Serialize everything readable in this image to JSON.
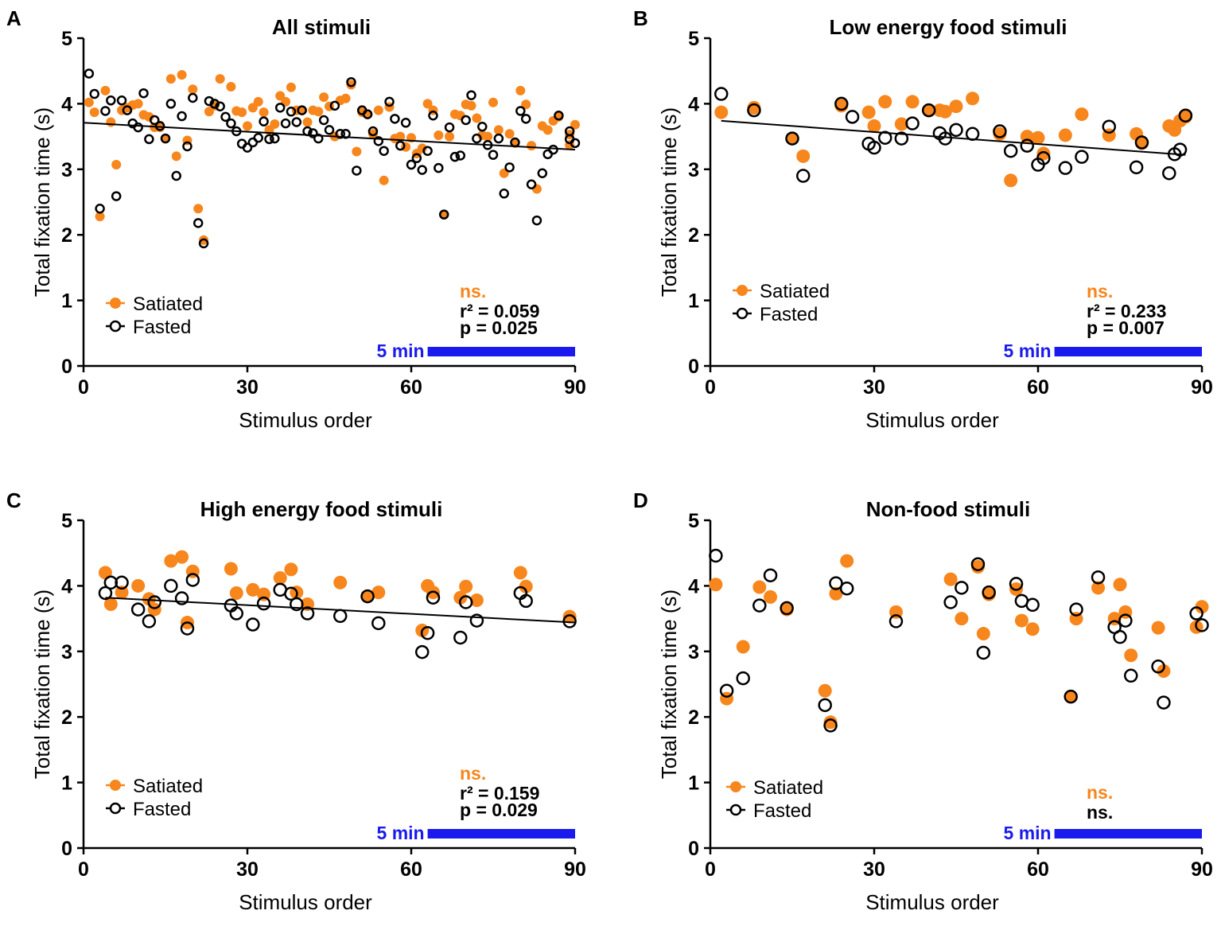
{
  "colors": {
    "satiated": "#f7861c",
    "fasted": "#000000",
    "bar": "#1a1aee",
    "ns": "#f7861c"
  },
  "chart_data": [
    {
      "id": "A",
      "type": "scatter",
      "letter": "A",
      "title": "All stimuli",
      "xlabel": "Stimulus order",
      "ylabel": "Total fixation time (s)",
      "xlim": [
        0,
        90
      ],
      "ylim": [
        0,
        5
      ],
      "xticks": [
        "0",
        "30",
        "60",
        "90"
      ],
      "yticks": [
        "0",
        "1",
        "2",
        "3",
        "4",
        "5"
      ],
      "legend": [
        "Satiated",
        "Fasted"
      ],
      "legend_position": "bottom-left",
      "points_from": [
        "B",
        "C",
        "D"
      ],
      "regression": {
        "x": [
          0,
          90
        ],
        "y": [
          3.71,
          3.3
        ]
      },
      "stats": {
        "sat": "ns.",
        "line1": "r² = 0.059",
        "line2": "p  = 0.025"
      },
      "bar_label": "5 min",
      "bar_range": [
        63,
        90
      ]
    },
    {
      "id": "B",
      "type": "scatter",
      "letter": "B",
      "title": "Low energy food stimuli",
      "xlabel": "Stimulus order",
      "ylabel": "Total fixation time (s)",
      "xlim": [
        0,
        90
      ],
      "ylim": [
        0,
        5
      ],
      "xticks": [
        "0",
        "30",
        "60",
        "90"
      ],
      "yticks": [
        "0",
        "1",
        "2",
        "3",
        "4",
        "5"
      ],
      "legend": [
        "Satiated",
        "Fasted"
      ],
      "legend_position": "bottom-left",
      "series": [
        {
          "name": "Satiated",
          "x": [
            2,
            8,
            15,
            17,
            24,
            29,
            30,
            32,
            35,
            37,
            40,
            42,
            43,
            45,
            48,
            53,
            55,
            58,
            60,
            61,
            65,
            68,
            73,
            78,
            79,
            84,
            85,
            86,
            87
          ],
          "y": [
            3.87,
            3.94,
            3.47,
            3.2,
            3.97,
            3.87,
            3.66,
            4.03,
            3.69,
            4.03,
            3.9,
            3.9,
            3.88,
            3.96,
            4.08,
            3.54,
            2.83,
            3.5,
            3.48,
            3.24,
            3.52,
            3.84,
            3.52,
            3.54,
            3.4,
            3.66,
            3.6,
            3.74,
            3.8
          ]
        },
        {
          "name": "Fasted",
          "x": [
            2,
            8,
            15,
            17,
            24,
            26,
            29,
            30,
            32,
            35,
            37,
            40,
            42,
            43,
            45,
            48,
            53,
            55,
            58,
            60,
            61,
            65,
            68,
            73,
            78,
            79,
            84,
            85,
            86,
            87
          ],
          "y": [
            4.15,
            3.9,
            3.47,
            2.9,
            4.0,
            3.8,
            3.39,
            3.33,
            3.48,
            3.47,
            3.7,
            3.9,
            3.55,
            3.47,
            3.6,
            3.54,
            3.58,
            3.28,
            3.36,
            3.07,
            3.17,
            3.02,
            3.19,
            3.65,
            3.03,
            3.41,
            2.94,
            3.23,
            3.3,
            3.82
          ]
        }
      ],
      "regression": {
        "x": [
          2,
          87
        ],
        "y": [
          3.74,
          3.22
        ]
      },
      "stats": {
        "sat": "ns.",
        "line1": "r² = 0.233",
        "line2": "p  = 0.007"
      },
      "bar_label": "5 min",
      "bar_range": [
        63,
        90
      ]
    },
    {
      "id": "C",
      "type": "scatter",
      "letter": "C",
      "title": "High energy food stimuli",
      "xlabel": "Stimulus order",
      "ylabel": "Total fixation time (s)",
      "xlim": [
        0,
        90
      ],
      "ylim": [
        0,
        5
      ],
      "xticks": [
        "0",
        "30",
        "60",
        "90"
      ],
      "yticks": [
        "0",
        "1",
        "2",
        "3",
        "4",
        "5"
      ],
      "legend": [
        "Satiated",
        "Fasted"
      ],
      "legend_position": "bottom-left",
      "series": [
        {
          "name": "Satiated",
          "x": [
            4,
            5,
            7,
            10,
            12,
            13,
            16,
            18,
            19,
            20,
            27,
            28,
            31,
            33,
            36,
            38,
            39,
            41,
            47,
            52,
            54,
            62,
            63,
            64,
            69,
            70,
            72,
            80,
            81,
            89
          ],
          "y": [
            4.2,
            3.72,
            3.9,
            4.0,
            3.8,
            3.64,
            4.38,
            4.44,
            3.44,
            4.22,
            4.26,
            3.89,
            3.94,
            3.87,
            4.12,
            4.25,
            3.9,
            3.72,
            4.05,
            3.84,
            3.9,
            3.32,
            4.0,
            3.9,
            3.82,
            3.99,
            3.78,
            4.2,
            3.99,
            3.53
          ]
        },
        {
          "name": "Fasted",
          "x": [
            4,
            5,
            7,
            10,
            12,
            13,
            16,
            18,
            19,
            20,
            27,
            28,
            31,
            33,
            36,
            38,
            39,
            41,
            47,
            52,
            54,
            62,
            63,
            64,
            69,
            70,
            72,
            80,
            81,
            89
          ],
          "y": [
            3.89,
            4.05,
            4.05,
            3.64,
            3.46,
            3.75,
            4.0,
            3.81,
            3.35,
            4.09,
            3.7,
            3.58,
            3.41,
            3.73,
            3.94,
            3.88,
            3.72,
            3.58,
            3.54,
            3.84,
            3.43,
            2.99,
            3.28,
            3.82,
            3.21,
            3.75,
            3.47,
            3.89,
            3.77,
            3.46
          ]
        }
      ],
      "regression": {
        "x": [
          4,
          90
        ],
        "y": [
          3.82,
          3.44
        ]
      },
      "stats": {
        "sat": "ns.",
        "line1": "r² = 0.159",
        "line2": "p  = 0.029"
      },
      "bar_label": "5 min",
      "bar_range": [
        63,
        90
      ]
    },
    {
      "id": "D",
      "type": "scatter",
      "letter": "D",
      "title": "Non-food stimuli",
      "xlabel": "Stimulus order",
      "ylabel": "Total fixation time (s)",
      "xlim": [
        0,
        90
      ],
      "ylim": [
        0,
        5
      ],
      "xticks": [
        "0",
        "30",
        "60",
        "90"
      ],
      "yticks": [
        "0",
        "1",
        "2",
        "3",
        "4",
        "5"
      ],
      "legend": [
        "Satiated",
        "Fasted"
      ],
      "legend_position": "bottom-left",
      "series": [
        {
          "name": "Satiated",
          "x": [
            1,
            3,
            6,
            9,
            11,
            14,
            21,
            22,
            23,
            25,
            34,
            44,
            46,
            49,
            50,
            51,
            56,
            57,
            59,
            66,
            67,
            71,
            74,
            75,
            76,
            77,
            82,
            83,
            89,
            90
          ],
          "y": [
            4.02,
            2.28,
            3.07,
            3.98,
            3.83,
            3.64,
            2.4,
            1.92,
            3.88,
            4.38,
            3.6,
            4.1,
            3.5,
            4.29,
            3.27,
            3.87,
            3.95,
            3.47,
            3.34,
            2.31,
            3.5,
            3.97,
            3.5,
            4.02,
            3.6,
            2.94,
            3.36,
            2.7,
            3.37,
            3.68
          ]
        },
        {
          "name": "Fasted",
          "x": [
            1,
            3,
            6,
            9,
            11,
            14,
            21,
            22,
            23,
            25,
            34,
            44,
            46,
            49,
            50,
            51,
            56,
            57,
            59,
            66,
            67,
            71,
            74,
            75,
            76,
            77,
            82,
            83,
            89,
            90
          ],
          "y": [
            4.46,
            2.4,
            2.59,
            3.7,
            4.16,
            3.66,
            2.18,
            1.87,
            4.04,
            3.96,
            3.46,
            3.75,
            3.97,
            4.33,
            2.98,
            3.9,
            4.03,
            3.77,
            3.71,
            2.31,
            3.64,
            4.13,
            3.37,
            3.22,
            3.47,
            2.63,
            2.77,
            2.22,
            3.58,
            3.4
          ]
        }
      ],
      "regression": null,
      "stats": {
        "sat": "ns.",
        "line1": "ns.",
        "line2": ""
      },
      "bar_label": "5 min",
      "bar_range": [
        63,
        90
      ]
    }
  ]
}
